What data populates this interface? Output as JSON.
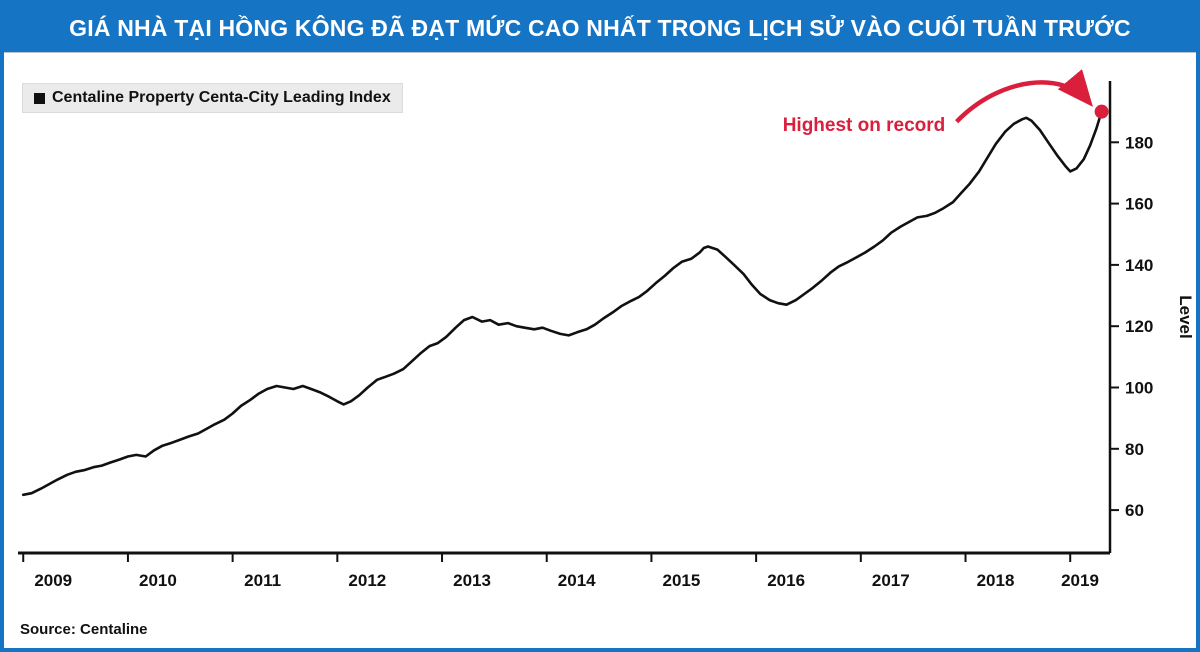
{
  "banner": {
    "title": "GIÁ NHÀ TẠI HỒNG KÔNG ĐÃ ĐẠT MỨC CAO NHẤT TRONG LỊCH SỬ VÀO CUỐI TUẦN TRƯỚC"
  },
  "theme": {
    "banner_blue": "#1574c4",
    "accent_red": "#da1f3d",
    "line_black": "#111111"
  },
  "chart_data": {
    "type": "line",
    "legend": [
      "Centaline Property Centa-City Leading Index"
    ],
    "annotation": "Highest on record",
    "source": "Source: Centaline",
    "ylabel": "Level",
    "xlabel": "",
    "x_ticks": [
      2009,
      2010,
      2011,
      2012,
      2013,
      2014,
      2015,
      2016,
      2017,
      2018,
      2019
    ],
    "y_ticks": [
      60,
      80,
      100,
      120,
      140,
      160,
      180
    ],
    "xlim": [
      2008.95,
      2019.38
    ],
    "ylim": [
      46,
      200
    ],
    "grid": false,
    "legend_position": "top-left",
    "colors": {
      "line": "#111111",
      "accent": "#da1f3d"
    },
    "series": [
      {
        "name": "Centaline Property Centa-City Leading Index",
        "points": [
          [
            2009.0,
            65
          ],
          [
            2009.08,
            65.5
          ],
          [
            2009.17,
            67
          ],
          [
            2009.25,
            68.5
          ],
          [
            2009.33,
            70
          ],
          [
            2009.42,
            71.5
          ],
          [
            2009.5,
            72.5
          ],
          [
            2009.58,
            73
          ],
          [
            2009.67,
            74
          ],
          [
            2009.75,
            74.5
          ],
          [
            2009.83,
            75.5
          ],
          [
            2009.92,
            76.5
          ],
          [
            2010.0,
            77.5
          ],
          [
            2010.08,
            78
          ],
          [
            2010.17,
            77.5
          ],
          [
            2010.25,
            79.5
          ],
          [
            2010.33,
            81
          ],
          [
            2010.42,
            82
          ],
          [
            2010.5,
            83
          ],
          [
            2010.58,
            84
          ],
          [
            2010.67,
            85
          ],
          [
            2010.75,
            86.5
          ],
          [
            2010.83,
            88
          ],
          [
            2010.92,
            89.5
          ],
          [
            2011.0,
            91.5
          ],
          [
            2011.08,
            94
          ],
          [
            2011.17,
            96
          ],
          [
            2011.25,
            98
          ],
          [
            2011.33,
            99.5
          ],
          [
            2011.42,
            100.5
          ],
          [
            2011.5,
            100
          ],
          [
            2011.58,
            99.5
          ],
          [
            2011.67,
            100.5
          ],
          [
            2011.75,
            99.5
          ],
          [
            2011.83,
            98.5
          ],
          [
            2011.92,
            97
          ],
          [
            2012.0,
            95.5
          ],
          [
            2012.06,
            94.5
          ],
          [
            2012.13,
            95.5
          ],
          [
            2012.21,
            97.5
          ],
          [
            2012.29,
            100
          ],
          [
            2012.38,
            102.5
          ],
          [
            2012.46,
            103.5
          ],
          [
            2012.54,
            104.5
          ],
          [
            2012.63,
            106
          ],
          [
            2012.71,
            108.5
          ],
          [
            2012.79,
            111
          ],
          [
            2012.88,
            113.5
          ],
          [
            2012.96,
            114.5
          ],
          [
            2013.04,
            116.5
          ],
          [
            2013.13,
            119.5
          ],
          [
            2013.21,
            122
          ],
          [
            2013.29,
            123
          ],
          [
            2013.38,
            121.5
          ],
          [
            2013.46,
            122
          ],
          [
            2013.54,
            120.5
          ],
          [
            2013.63,
            121
          ],
          [
            2013.71,
            120
          ],
          [
            2013.79,
            119.5
          ],
          [
            2013.88,
            119
          ],
          [
            2013.96,
            119.5
          ],
          [
            2014.04,
            118.5
          ],
          [
            2014.13,
            117.5
          ],
          [
            2014.21,
            117
          ],
          [
            2014.29,
            118
          ],
          [
            2014.38,
            119
          ],
          [
            2014.46,
            120.5
          ],
          [
            2014.54,
            122.5
          ],
          [
            2014.63,
            124.5
          ],
          [
            2014.71,
            126.5
          ],
          [
            2014.79,
            128
          ],
          [
            2014.88,
            129.5
          ],
          [
            2014.96,
            131.5
          ],
          [
            2015.04,
            134
          ],
          [
            2015.13,
            136.5
          ],
          [
            2015.21,
            139
          ],
          [
            2015.29,
            141
          ],
          [
            2015.38,
            142
          ],
          [
            2015.46,
            144
          ],
          [
            2015.5,
            145.5
          ],
          [
            2015.54,
            146
          ],
          [
            2015.63,
            145
          ],
          [
            2015.71,
            142.5
          ],
          [
            2015.79,
            140
          ],
          [
            2015.88,
            137
          ],
          [
            2015.96,
            133.5
          ],
          [
            2016.04,
            130.5
          ],
          [
            2016.13,
            128.5
          ],
          [
            2016.21,
            127.5
          ],
          [
            2016.29,
            127
          ],
          [
            2016.38,
            128.5
          ],
          [
            2016.46,
            130.5
          ],
          [
            2016.54,
            132.5
          ],
          [
            2016.63,
            135
          ],
          [
            2016.71,
            137.5
          ],
          [
            2016.79,
            139.5
          ],
          [
            2016.88,
            141
          ],
          [
            2016.96,
            142.5
          ],
          [
            2017.04,
            144
          ],
          [
            2017.13,
            146
          ],
          [
            2017.21,
            148
          ],
          [
            2017.29,
            150.5
          ],
          [
            2017.38,
            152.5
          ],
          [
            2017.46,
            154
          ],
          [
            2017.54,
            155.5
          ],
          [
            2017.63,
            156
          ],
          [
            2017.71,
            157
          ],
          [
            2017.79,
            158.5
          ],
          [
            2017.88,
            160.5
          ],
          [
            2017.96,
            163.5
          ],
          [
            2018.04,
            166.5
          ],
          [
            2018.13,
            170.5
          ],
          [
            2018.21,
            175
          ],
          [
            2018.29,
            179.5
          ],
          [
            2018.38,
            183.5
          ],
          [
            2018.46,
            186
          ],
          [
            2018.54,
            187.5
          ],
          [
            2018.58,
            188
          ],
          [
            2018.63,
            187
          ],
          [
            2018.71,
            184
          ],
          [
            2018.79,
            180
          ],
          [
            2018.88,
            175.5
          ],
          [
            2018.96,
            172
          ],
          [
            2019.0,
            170.5
          ],
          [
            2019.06,
            171.5
          ],
          [
            2019.13,
            174.5
          ],
          [
            2019.19,
            179
          ],
          [
            2019.25,
            184.5
          ],
          [
            2019.3,
            190
          ]
        ]
      }
    ]
  }
}
